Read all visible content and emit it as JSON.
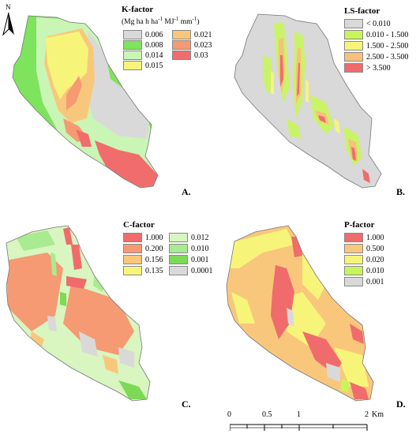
{
  "north": {
    "label": "N"
  },
  "panels": [
    {
      "id": "A",
      "letter": "A.",
      "title": "K-factor",
      "unit_pre": "(Mg ha h ha",
      "unit_sup1": "-1",
      "unit_mid": " MJ",
      "unit_sup2": "-1",
      "unit_mid2": " mm",
      "unit_sup3": "-1",
      "unit_post": ")",
      "legend": [
        {
          "label": "0.006",
          "color": "#d9d9d9"
        },
        {
          "label": "0.021",
          "color": "#f9c77b"
        },
        {
          "label": "0.008",
          "color": "#7ee35d"
        },
        {
          "label": "0.023",
          "color": "#f59a73"
        },
        {
          "label": "0.014",
          "color": "#c9f5b5"
        },
        {
          "label": "0.03",
          "color": "#f16d6d"
        },
        {
          "label": "0.015",
          "color": "#f6f57a"
        }
      ]
    },
    {
      "id": "B",
      "letter": "B.",
      "title": "LS-factor",
      "legend": [
        {
          "label": "< 0.010",
          "color": "#d9d9d9"
        },
        {
          "label": "0.010 - 1.500",
          "color": "#c8f55a"
        },
        {
          "label": "1.500 - 2.500",
          "color": "#f6f57a"
        },
        {
          "label": "2.500 - 3.500",
          "color": "#f8c07d"
        },
        {
          "label": "> 3.500",
          "color": "#f06c6c"
        }
      ]
    },
    {
      "id": "C",
      "letter": "C.",
      "title": "C-factor",
      "legend": [
        {
          "label": "1.000",
          "color": "#f06c6c"
        },
        {
          "label": "0.012",
          "color": "#d9f5c0"
        },
        {
          "label": "0.200",
          "color": "#f59a73"
        },
        {
          "label": "0.010",
          "color": "#a8eb90"
        },
        {
          "label": "0.156",
          "color": "#f9c77b"
        },
        {
          "label": "0.001",
          "color": "#7ed957"
        },
        {
          "label": "0.135",
          "color": "#f6f57a"
        },
        {
          "label": "0.0001",
          "color": "#d9d9d9"
        }
      ]
    },
    {
      "id": "D",
      "letter": "D.",
      "title": "P-factor",
      "legend": [
        {
          "label": "1.000",
          "color": "#f06c6c"
        },
        {
          "label": "0.500",
          "color": "#f9c77b"
        },
        {
          "label": "0.020",
          "color": "#f6f57a"
        },
        {
          "label": "0.010",
          "color": "#c8f55a"
        },
        {
          "label": "0.001",
          "color": "#d9d9d9"
        }
      ]
    }
  ],
  "scale": {
    "ticks": [
      "0",
      "0.5",
      "1",
      "2"
    ],
    "unit": "Km"
  }
}
